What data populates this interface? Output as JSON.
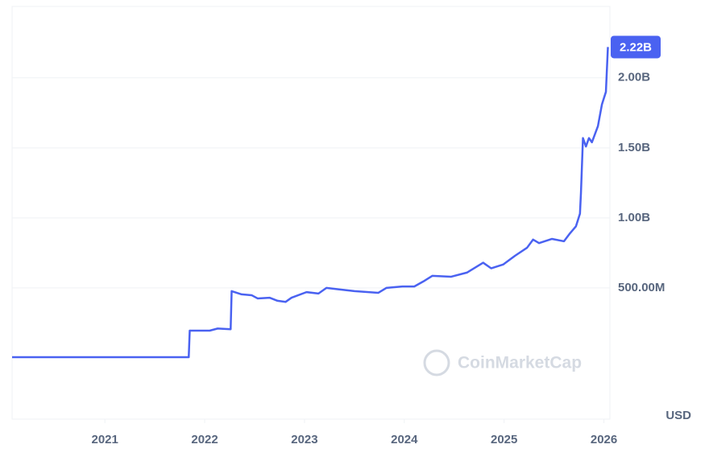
{
  "chart_data": {
    "type": "line",
    "x": [
      2020.07,
      2021.84,
      2021.85,
      2022.05,
      2022.13,
      2022.26,
      2022.27,
      2022.37,
      2022.47,
      2022.53,
      2022.65,
      2022.73,
      2022.81,
      2022.87,
      2023.02,
      2023.14,
      2023.22,
      2023.34,
      2023.5,
      2023.74,
      2023.82,
      2023.98,
      2024.1,
      2024.19,
      2024.28,
      2024.47,
      2024.63,
      2024.79,
      2024.87,
      2024.99,
      2025.11,
      2025.23,
      2025.29,
      2025.35,
      2025.48,
      2025.6,
      2025.66,
      2025.72,
      2025.76,
      2025.77,
      2025.79,
      2025.82,
      2025.85,
      2025.88,
      2025.94,
      2025.98,
      2026.02,
      2026.04
    ],
    "series": [
      {
        "color": "#4a62f1",
        "values": [
          5000000,
          5000000,
          195000000,
          195000000,
          210000000,
          205000000,
          477000000,
          454000000,
          448000000,
          425000000,
          430000000,
          408000000,
          400000000,
          430000000,
          470000000,
          460000000,
          500000000,
          490000000,
          477000000,
          465000000,
          500000000,
          510000000,
          510000000,
          546000000,
          586000000,
          580000000,
          610000000,
          680000000,
          640000000,
          667000000,
          730000000,
          787000000,
          845000000,
          820000000,
          850000000,
          833000000,
          890000000,
          940000000,
          1030000000,
          1180000000,
          1570000000,
          1510000000,
          1570000000,
          1540000000,
          1655000000,
          1810000000,
          1900000000,
          2220000000
        ],
        "value_labels": [
          null,
          null,
          null,
          null,
          null,
          null,
          null,
          null,
          null,
          null,
          null,
          null,
          null,
          null,
          null,
          null,
          null,
          null,
          null,
          null,
          null,
          null,
          null,
          null,
          null,
          null,
          null,
          null,
          null,
          null,
          null,
          null,
          null,
          null,
          null,
          null,
          null,
          null,
          null,
          null,
          null,
          null,
          null,
          null,
          null,
          null,
          null,
          "2.22B"
        ]
      }
    ],
    "xlim": [
      2020.07,
      2026.06
    ],
    "xticks": [
      2021,
      2022,
      2023,
      2024,
      2025,
      2026
    ],
    "ylim": [
      -437000000,
      2510000000
    ],
    "yticks": [
      {
        "value": 500000000,
        "label": "500.00M"
      },
      {
        "value": 1000000000,
        "label": "1.00B"
      },
      {
        "value": 1500000000,
        "label": "1.50B"
      },
      {
        "value": 2000000000,
        "label": "2.00B"
      }
    ],
    "grid": true,
    "y_unit": "USD",
    "watermark": "CoinMarketCap"
  }
}
